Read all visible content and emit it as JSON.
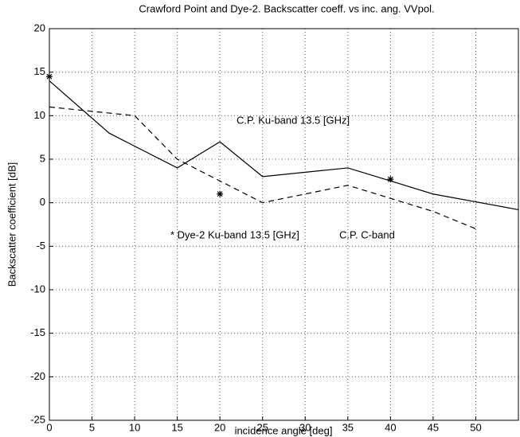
{
  "chart_data": {
    "type": "line",
    "title": "Crawford Point and Dye-2. Backscatter coeff. vs inc. ang. VVpol.",
    "x_label": "incidence angle [deg]",
    "y_label": "Backscatter coefficient [dB]",
    "annotations": [
      "C.P. Ku-band 13.5 [GHz]",
      "* Dye-2 Ku-band 13.5 [GHz]",
      "C.P. C-band"
    ],
    "series": [
      {
        "style": "solid",
        "color": "#000000",
        "x": [
          0,
          7,
          10,
          15,
          20,
          25,
          35,
          45,
          55
        ],
        "values": [
          14,
          8,
          6.5,
          4,
          7,
          3,
          4,
          1,
          -0.8
        ]
      },
      {
        "style": "dashed",
        "color": "#000000",
        "x": [
          0,
          10,
          15,
          25,
          35,
          45,
          50
        ],
        "values": [
          11,
          10,
          5,
          0,
          2,
          -1,
          -3
        ]
      },
      {
        "style": "markers",
        "color": "#000000",
        "x": [
          0,
          20,
          40
        ],
        "values": [
          14.5,
          1,
          2.7
        ]
      }
    ],
    "xlim": [
      0,
      55
    ],
    "ylim": [
      -25,
      20
    ],
    "xticks": [
      0,
      5,
      10,
      15,
      20,
      25,
      30,
      35,
      40,
      45,
      50
    ],
    "yticks": [
      -25,
      -20,
      -15,
      -10,
      -5,
      0,
      5,
      10,
      15,
      20
    ],
    "grid": true
  }
}
